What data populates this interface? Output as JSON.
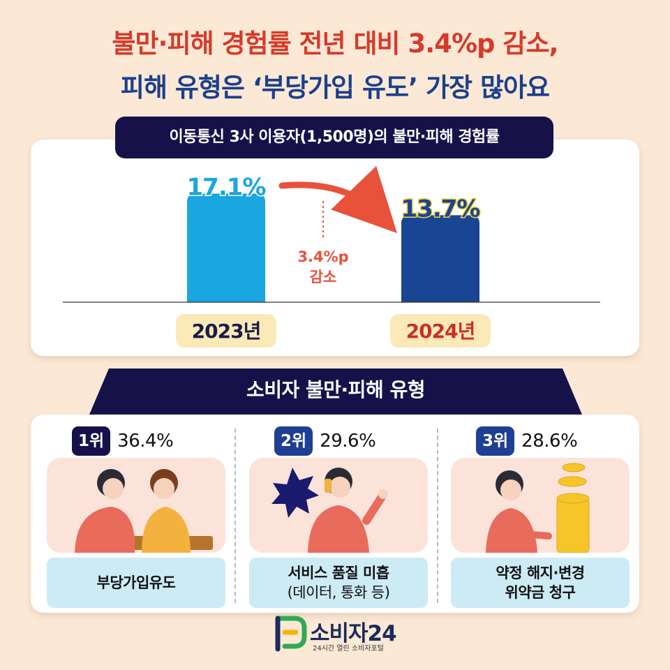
{
  "headline": {
    "line1": "불만·피해 경험률 전년 대비 3.4%p 감소,",
    "line2": "피해 유형은 ‘부당가입 유도’ 가장 많아요"
  },
  "chart_data": {
    "type": "bar",
    "title": "이동통신 3사 이용자(1,500명)의 불만·피해 경험률",
    "categories": [
      "2023년",
      "2024년"
    ],
    "values": [
      17.1,
      13.7
    ],
    "value_labels": [
      "17.1%",
      "13.7%"
    ],
    "unit": "%",
    "ylim": [
      0,
      20
    ],
    "colors": [
      "#1aa6e0",
      "#1a4595"
    ],
    "annotation": {
      "line1": "3.4%p",
      "line2": "감소"
    },
    "grid": false
  },
  "types": {
    "title": "소비자 불만·피해 유형",
    "items": [
      {
        "rank": "1위",
        "percent": "36.4%",
        "label": "부당가입유도",
        "sub": ""
      },
      {
        "rank": "2위",
        "percent": "29.6%",
        "label": "서비스 품질 미흡",
        "sub": "(데이터, 통화 등)"
      },
      {
        "rank": "3위",
        "percent": "28.6%",
        "label": "약정 해지·변경",
        "sub": "위약금 청구"
      }
    ]
  },
  "logo": {
    "name": "소비자24",
    "tagline": "24시간 열린 소비자포털"
  },
  "colors": {
    "background": "#fbe9d6",
    "headline_red": "#d63a2a",
    "headline_blue": "#1b3f8c",
    "navy": "#17114a"
  }
}
